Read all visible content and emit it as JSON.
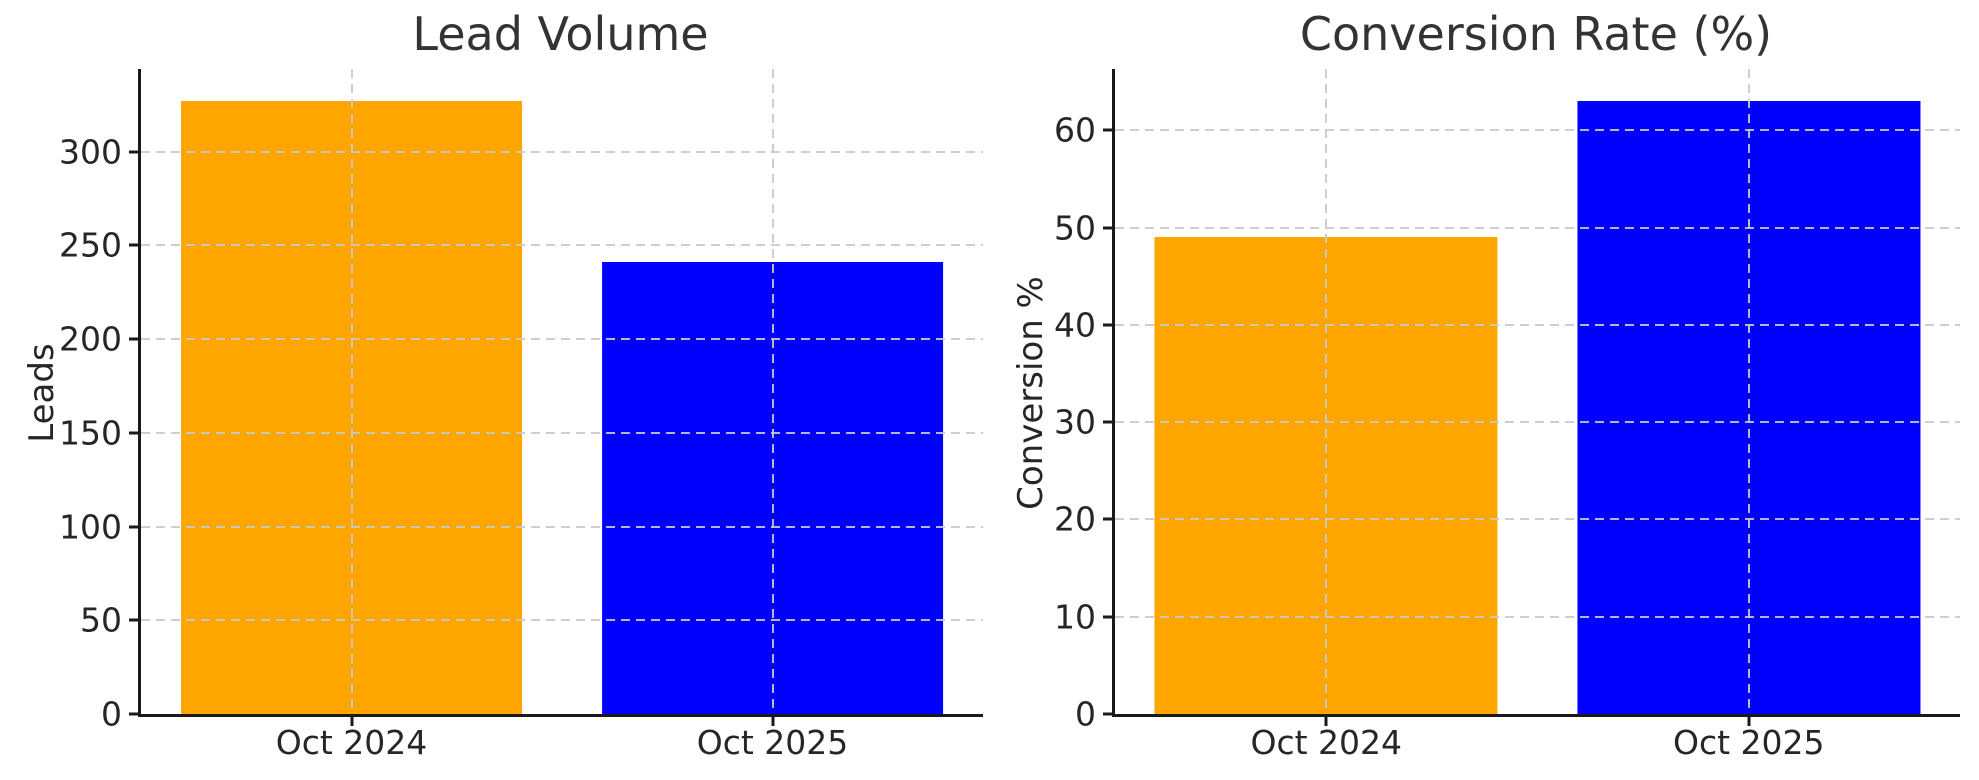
{
  "figure": {
    "background": "#ffffff",
    "text_color": "#262626",
    "spine_color": "#1a1a1a",
    "grid_color": "#c9c9c9"
  },
  "chart_data": [
    {
      "type": "bar",
      "title": "Lead Volume",
      "xlabel": "",
      "ylabel": "Leads",
      "categories": [
        "Oct 2024",
        "Oct 2025"
      ],
      "values": [
        327,
        241
      ],
      "bar_colors": [
        "#FFA500",
        "#0000FF"
      ],
      "ylim": [
        0,
        344
      ],
      "yticks": [
        0,
        50,
        100,
        150,
        200,
        250,
        300
      ],
      "bar_width_frac": 0.406,
      "grid": {
        "style": "dashed",
        "horizontal": true,
        "vertical": true,
        "over_bars": true
      },
      "legend": null
    },
    {
      "type": "bar",
      "title": "Conversion Rate (%)",
      "xlabel": "",
      "ylabel": "Conversion %",
      "categories": [
        "Oct 2024",
        "Oct 2025"
      ],
      "values": [
        49,
        63
      ],
      "bar_colors": [
        "#FFA500",
        "#0000FF"
      ],
      "ylim": [
        0,
        66.3
      ],
      "yticks": [
        0,
        10,
        20,
        30,
        40,
        50,
        60
      ],
      "bar_width_frac": 0.406,
      "grid": {
        "style": "dashed",
        "horizontal": true,
        "vertical": true,
        "over_bars": true
      },
      "legend": null
    }
  ]
}
